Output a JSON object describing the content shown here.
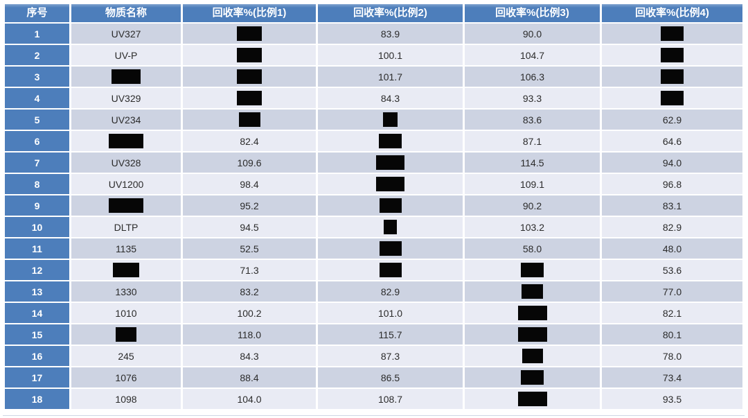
{
  "colors": {
    "header_bg": "#4d7ebb",
    "serial_bg": "#4d7ebb",
    "row_odd": "#cdd3e2",
    "row_even": "#e9ebf4",
    "header_text": "#ffffff",
    "cell_text": "#2b2b2b",
    "redaction": "#060606"
  },
  "table": {
    "columns": [
      {
        "label": "序号"
      },
      {
        "label": "物质名称"
      },
      {
        "label": "回收率%(比例1)"
      },
      {
        "label": "回收率%(比例2)"
      },
      {
        "label": "回收率%(比例3)"
      },
      {
        "label": "回收率%(比例4)"
      }
    ],
    "rows": [
      {
        "no": "1",
        "cells": [
          {
            "t": "UV327"
          },
          {
            "r": 36
          },
          {
            "t": "83.9"
          },
          {
            "t": "90.0"
          },
          {
            "r": 33
          }
        ]
      },
      {
        "no": "2",
        "cells": [
          {
            "t": "UV-P"
          },
          {
            "r": 36
          },
          {
            "t": "100.1"
          },
          {
            "t": "104.7"
          },
          {
            "r": 33
          }
        ]
      },
      {
        "no": "3",
        "cells": [
          {
            "r": 42
          },
          {
            "r": 36
          },
          {
            "t": "101.7"
          },
          {
            "t": "106.3"
          },
          {
            "r": 33
          }
        ]
      },
      {
        "no": "4",
        "cells": [
          {
            "t": "UV329"
          },
          {
            "r": 36
          },
          {
            "t": "84.3"
          },
          {
            "t": "93.3"
          },
          {
            "r": 33
          }
        ]
      },
      {
        "no": "5",
        "cells": [
          {
            "t": "UV234"
          },
          {
            "r": 31
          },
          {
            "r": 21
          },
          {
            "t": "83.6"
          },
          {
            "t": "62.9"
          }
        ]
      },
      {
        "no": "6",
        "cells": [
          {
            "r": 50
          },
          {
            "t": "82.4"
          },
          {
            "r": 33
          },
          {
            "t": "87.1"
          },
          {
            "t": "64.6"
          }
        ]
      },
      {
        "no": "7",
        "cells": [
          {
            "t": "UV328"
          },
          {
            "t": "109.6"
          },
          {
            "r": 41
          },
          {
            "t": "114.5"
          },
          {
            "t": "94.0"
          }
        ]
      },
      {
        "no": "8",
        "cells": [
          {
            "t": "UV1200"
          },
          {
            "t": "98.4"
          },
          {
            "r": 41
          },
          {
            "t": "109.1"
          },
          {
            "t": "96.8"
          }
        ]
      },
      {
        "no": "9",
        "cells": [
          {
            "r": 50
          },
          {
            "t": "95.2"
          },
          {
            "r": 32
          },
          {
            "t": "90.2"
          },
          {
            "t": "83.1"
          }
        ]
      },
      {
        "no": "10",
        "cells": [
          {
            "t": "DLTP"
          },
          {
            "t": "94.5"
          },
          {
            "r": 19
          },
          {
            "t": "103.2"
          },
          {
            "t": "82.9"
          }
        ]
      },
      {
        "no": "11",
        "cells": [
          {
            "t": "1135"
          },
          {
            "t": "52.5"
          },
          {
            "r": 32
          },
          {
            "t": "58.0"
          },
          {
            "t": "48.0"
          }
        ]
      },
      {
        "no": "12",
        "cells": [
          {
            "r": 38
          },
          {
            "t": "71.3"
          },
          {
            "r": 32
          },
          {
            "r": 33
          },
          {
            "t": "53.6"
          }
        ]
      },
      {
        "no": "13",
        "cells": [
          {
            "t": "1330"
          },
          {
            "t": "83.2"
          },
          {
            "t": "82.9"
          },
          {
            "r": 31
          },
          {
            "t": "77.0"
          }
        ]
      },
      {
        "no": "14",
        "cells": [
          {
            "t": "1010"
          },
          {
            "t": "100.2"
          },
          {
            "t": "101.0"
          },
          {
            "r": 42
          },
          {
            "t": "82.1"
          }
        ]
      },
      {
        "no": "15",
        "cells": [
          {
            "r": 30
          },
          {
            "t": "118.0"
          },
          {
            "t": "115.7"
          },
          {
            "r": 42
          },
          {
            "t": "80.1"
          }
        ]
      },
      {
        "no": "16",
        "cells": [
          {
            "t": "245"
          },
          {
            "t": "84.3"
          },
          {
            "t": "87.3"
          },
          {
            "r": 30
          },
          {
            "t": "78.0"
          }
        ]
      },
      {
        "no": "17",
        "cells": [
          {
            "t": "1076"
          },
          {
            "t": "88.4"
          },
          {
            "t": "86.5"
          },
          {
            "r": 33
          },
          {
            "t": "73.4"
          }
        ]
      },
      {
        "no": "18",
        "cells": [
          {
            "t": "1098"
          },
          {
            "t": "104.0"
          },
          {
            "t": "108.7"
          },
          {
            "r": 42
          },
          {
            "t": "93.5"
          }
        ]
      }
    ],
    "redaction_box_height": 21
  }
}
